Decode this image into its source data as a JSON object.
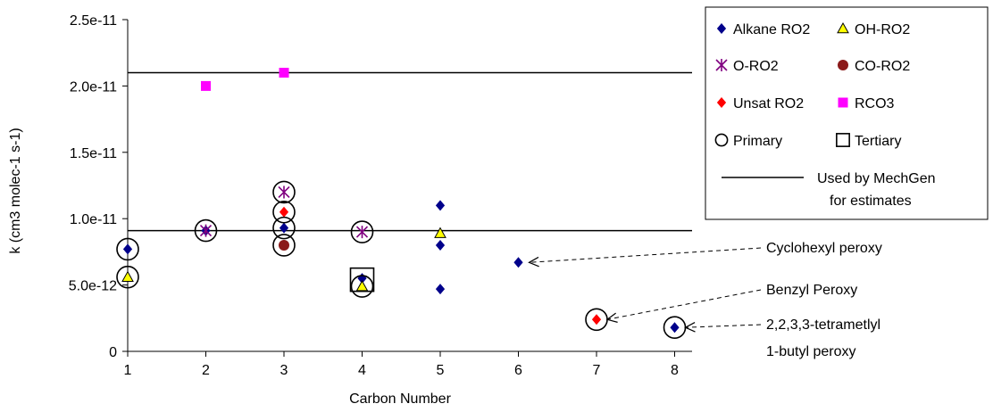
{
  "chart_data": {
    "type": "scatter",
    "title": "",
    "xlabel": "Carbon Number",
    "ylabel": "k (cm3 molec-1 s-1)",
    "xlim": [
      1,
      8
    ],
    "ylim": [
      0,
      2.5e-11
    ],
    "x_ticks": [
      "1",
      "2",
      "3",
      "4",
      "5",
      "6",
      "7",
      "8"
    ],
    "y_ticks": [
      {
        "value": 0,
        "label": "0"
      },
      {
        "value": 5e-12,
        "label": "5.0e-12"
      },
      {
        "value": 1e-11,
        "label": "1.0e-11"
      },
      {
        "value": 1.5e-11,
        "label": "1.5e-11"
      },
      {
        "value": 2e-11,
        "label": "2.0e-11"
      },
      {
        "value": 2.5e-11,
        "label": "2.5e-11"
      }
    ],
    "grid": false,
    "legend_position": "top-right",
    "series": [
      {
        "name": "Alkane RO2",
        "marker": "diamond",
        "color": "#00008b",
        "points": [
          [
            1,
            7.7e-12
          ],
          [
            2,
            9.1e-12
          ],
          [
            3,
            9.3e-12
          ],
          [
            4,
            5.5e-12
          ],
          [
            5,
            1.1e-11
          ],
          [
            5,
            8e-12
          ],
          [
            5,
            4.7e-12
          ],
          [
            6,
            6.7e-12
          ],
          [
            8,
            1.8e-12
          ]
        ]
      },
      {
        "name": "OH-RO2",
        "marker": "triangle",
        "color": "#ffff00",
        "points": [
          [
            1,
            5.6e-12
          ],
          [
            4,
            4.9e-12
          ],
          [
            5,
            8.9e-12
          ]
        ]
      },
      {
        "name": "O-RO2",
        "marker": "star",
        "color": "#800080",
        "points": [
          [
            2,
            9.1e-12
          ],
          [
            3,
            1.2e-11
          ],
          [
            4,
            9e-12
          ]
        ]
      },
      {
        "name": "CO-RO2",
        "marker": "circle",
        "color": "#8b1a1a",
        "points": [
          [
            3,
            8e-12
          ]
        ]
      },
      {
        "name": "Unsat RO2",
        "marker": "diamond",
        "color": "#ff0000",
        "points": [
          [
            3,
            1.05e-11
          ],
          [
            7,
            2.4e-12
          ]
        ]
      },
      {
        "name": "RCO3",
        "marker": "square",
        "color": "#ff00ff",
        "points": [
          [
            2,
            2e-11
          ],
          [
            3,
            2.1e-11
          ]
        ]
      },
      {
        "name": "Primary",
        "marker": "open-circle",
        "color": "#000000",
        "points": [
          [
            1,
            7.7e-12
          ],
          [
            1,
            5.6e-12
          ],
          [
            2,
            9.1e-12
          ],
          [
            3,
            1.2e-11
          ],
          [
            3,
            1.05e-11
          ],
          [
            3,
            9.3e-12
          ],
          [
            3,
            8e-12
          ],
          [
            4,
            9e-12
          ],
          [
            4,
            4.9e-12
          ],
          [
            7,
            2.4e-12
          ],
          [
            8,
            1.8e-12
          ]
        ]
      },
      {
        "name": "Tertiary",
        "marker": "open-square",
        "color": "#000000",
        "points": [
          [
            4,
            5.4e-12
          ]
        ]
      }
    ],
    "reference_lines": {
      "name": "Used by MechGen for estimates",
      "values": [
        2.1e-11,
        9.1e-12
      ]
    },
    "annotations": [
      {
        "lines": [
          "Cyclohexyl peroxy"
        ],
        "point": [
          6,
          6.7e-12
        ],
        "arrow": "dashed"
      },
      {
        "lines": [
          "Benzyl Peroxy"
        ],
        "point": [
          7,
          2.4e-12
        ],
        "arrow": "dashed"
      },
      {
        "lines": [
          "2,2,3,3-tetrametlyl",
          "1-butyl peroxy"
        ],
        "point": [
          8,
          1.8e-12
        ],
        "arrow": "dashed"
      }
    ],
    "legend": [
      {
        "label": "Alkane RO2",
        "marker": "diamond",
        "color": "#00008b"
      },
      {
        "label": "OH-RO2",
        "marker": "triangle",
        "color": "#ffff00"
      },
      {
        "label": "O-RO2",
        "marker": "star",
        "color": "#800080"
      },
      {
        "label": "CO-RO2",
        "marker": "circle",
        "color": "#8b1a1a"
      },
      {
        "label": "Unsat RO2",
        "marker": "diamond",
        "color": "#ff0000"
      },
      {
        "label": "RCO3",
        "marker": "square",
        "color": "#ff00ff"
      },
      {
        "label": "Primary",
        "marker": "open-circle",
        "color": "#000000"
      },
      {
        "label": "Tertiary",
        "marker": "open-square",
        "color": "#000000"
      },
      {
        "label": "Used by MechGen",
        "label2": "for estimates",
        "marker": "line",
        "color": "#000000"
      }
    ]
  }
}
